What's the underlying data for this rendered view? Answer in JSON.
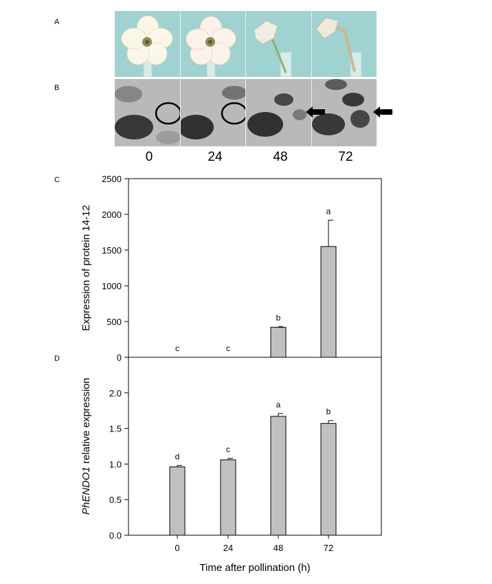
{
  "panels": {
    "a": "A",
    "b": "B",
    "c": "C",
    "d": "D"
  },
  "time_labels": [
    "0",
    "24",
    "48",
    "72"
  ],
  "chart_data": [
    {
      "type": "bar",
      "panel": "C",
      "categories": [
        "0",
        "24",
        "48",
        "72"
      ],
      "values": [
        0,
        0,
        420,
        1550
      ],
      "errors": [
        0,
        0,
        8,
        370
      ],
      "significance": [
        "c",
        "c",
        "b",
        "a"
      ],
      "ylabel": "Expression of protein 14-12",
      "ylim": [
        0,
        2500
      ],
      "yticks": [
        0,
        500,
        1000,
        1500,
        2000,
        2500
      ],
      "ytick_labels": [
        "0",
        "500",
        "1000",
        "1500",
        "2000",
        "2500"
      ],
      "bar_color": "#c0c0c0"
    },
    {
      "type": "bar",
      "panel": "D",
      "categories": [
        "0",
        "24",
        "48",
        "72"
      ],
      "values": [
        0.96,
        1.06,
        1.67,
        1.57
      ],
      "errors": [
        0.02,
        0.02,
        0.04,
        0.04
      ],
      "significance": [
        "d",
        "c",
        "a",
        "b"
      ],
      "ylabel_italic": "PhENDO1",
      "ylabel_rest": " relative expression",
      "xlabel": "Time after pollination (h)",
      "ylim": [
        0,
        2.5
      ],
      "yticks": [
        0,
        0.5,
        1.0,
        1.5,
        2.0
      ],
      "ytick_labels": [
        "0.0",
        "0.5",
        "1.0",
        "1.5",
        "2.0"
      ],
      "xtick_labels": [
        "0",
        "24",
        "48",
        "72"
      ],
      "bar_color": "#c0c0c0"
    }
  ]
}
